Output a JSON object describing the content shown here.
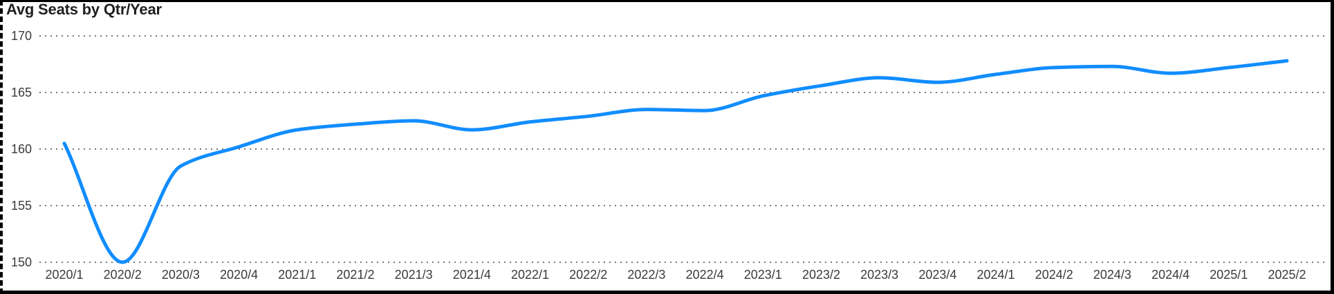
{
  "chart_data": {
    "type": "line",
    "title": "Avg Seats by Qtr/Year",
    "categories": [
      "2020/1",
      "2020/2",
      "2020/3",
      "2020/4",
      "2021/1",
      "2021/2",
      "2021/3",
      "2021/4",
      "2022/1",
      "2022/2",
      "2022/3",
      "2022/4",
      "2023/1",
      "2023/2",
      "2023/3",
      "2023/4",
      "2024/1",
      "2024/2",
      "2024/3",
      "2024/4",
      "2025/1",
      "2025/2"
    ],
    "series": [
      {
        "name": "Avg Seats",
        "values": [
          160.5,
          150.0,
          158.5,
          160.2,
          161.7,
          162.2,
          162.5,
          161.7,
          162.4,
          162.9,
          163.5,
          163.4,
          164.7,
          165.6,
          166.3,
          165.9,
          166.6,
          167.2,
          167.3,
          166.7,
          167.2,
          167.8
        ]
      }
    ],
    "xlabel": "Qtr/Year",
    "ylabel": "Avg Seats",
    "ylim": [
      150,
      170
    ],
    "yticks": [
      150,
      155,
      160,
      165,
      170
    ],
    "grid": "horizontal-dotted",
    "legend_position": "none",
    "smooth": true,
    "colors": {
      "line": "#118DFF",
      "title_text": "#1f1f1f",
      "axis_text": "#3a3a3a",
      "gridline": "#757575",
      "background": "#ffffff",
      "frame_border": "#000000"
    }
  }
}
